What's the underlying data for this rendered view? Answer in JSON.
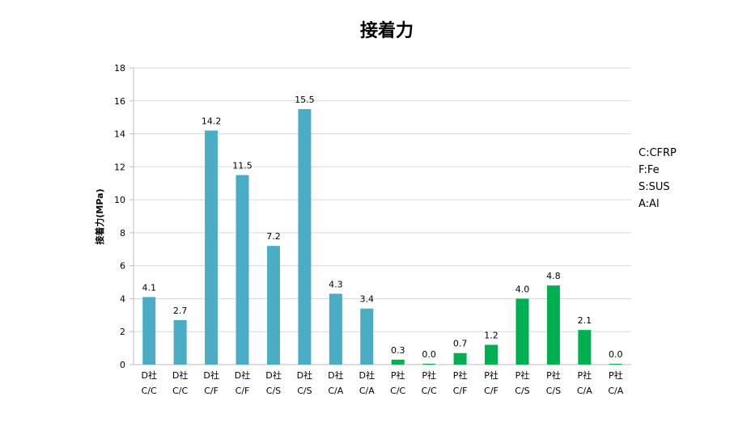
{
  "chart_data": {
    "type": "bar",
    "title": "接着力",
    "ylabel": "接着力(MPa)",
    "xlabel": "",
    "ylim": [
      0,
      18
    ],
    "yticks": [
      0,
      2,
      4,
      6,
      8,
      10,
      12,
      14,
      16,
      18
    ],
    "grid": true,
    "categories": [
      {
        "company": "D社",
        "combo": "C/C"
      },
      {
        "company": "D社",
        "combo": "C/C"
      },
      {
        "company": "D社",
        "combo": "C/F"
      },
      {
        "company": "D社",
        "combo": "C/F"
      },
      {
        "company": "D社",
        "combo": "C/S"
      },
      {
        "company": "D社",
        "combo": "C/S"
      },
      {
        "company": "D社",
        "combo": "C/A"
      },
      {
        "company": "D社",
        "combo": "C/A"
      },
      {
        "company": "P社",
        "combo": "C/C"
      },
      {
        "company": "P社",
        "combo": "C/C"
      },
      {
        "company": "P社",
        "combo": "C/F"
      },
      {
        "company": "P社",
        "combo": "C/F"
      },
      {
        "company": "P社",
        "combo": "C/S"
      },
      {
        "company": "P社",
        "combo": "C/S"
      },
      {
        "company": "P社",
        "combo": "C/A"
      },
      {
        "company": "P社",
        "combo": "C/A"
      }
    ],
    "values": [
      4.1,
      2.7,
      14.2,
      11.5,
      7.2,
      15.5,
      4.3,
      3.4,
      0.3,
      0.0,
      0.7,
      1.2,
      4.0,
      4.8,
      2.1,
      0.0
    ],
    "value_labels": [
      "4.1",
      "2.7",
      "14.2",
      "11.5",
      "7.2",
      "15.5",
      "4.3",
      "3.4",
      "0.3",
      "0.0",
      "0.7",
      "1.2",
      "4.0",
      "4.8",
      "2.1",
      "0.0"
    ],
    "bar_colors": [
      "#4bacc6",
      "#4bacc6",
      "#4bacc6",
      "#4bacc6",
      "#4bacc6",
      "#4bacc6",
      "#4bacc6",
      "#4bacc6",
      "#00b050",
      "#00b050",
      "#00b050",
      "#00b050",
      "#00b050",
      "#00b050",
      "#00b050",
      "#00b050"
    ],
    "annotations": [
      "C:CFRP",
      "F:Fe",
      "S:SUS",
      "A:Al"
    ]
  }
}
